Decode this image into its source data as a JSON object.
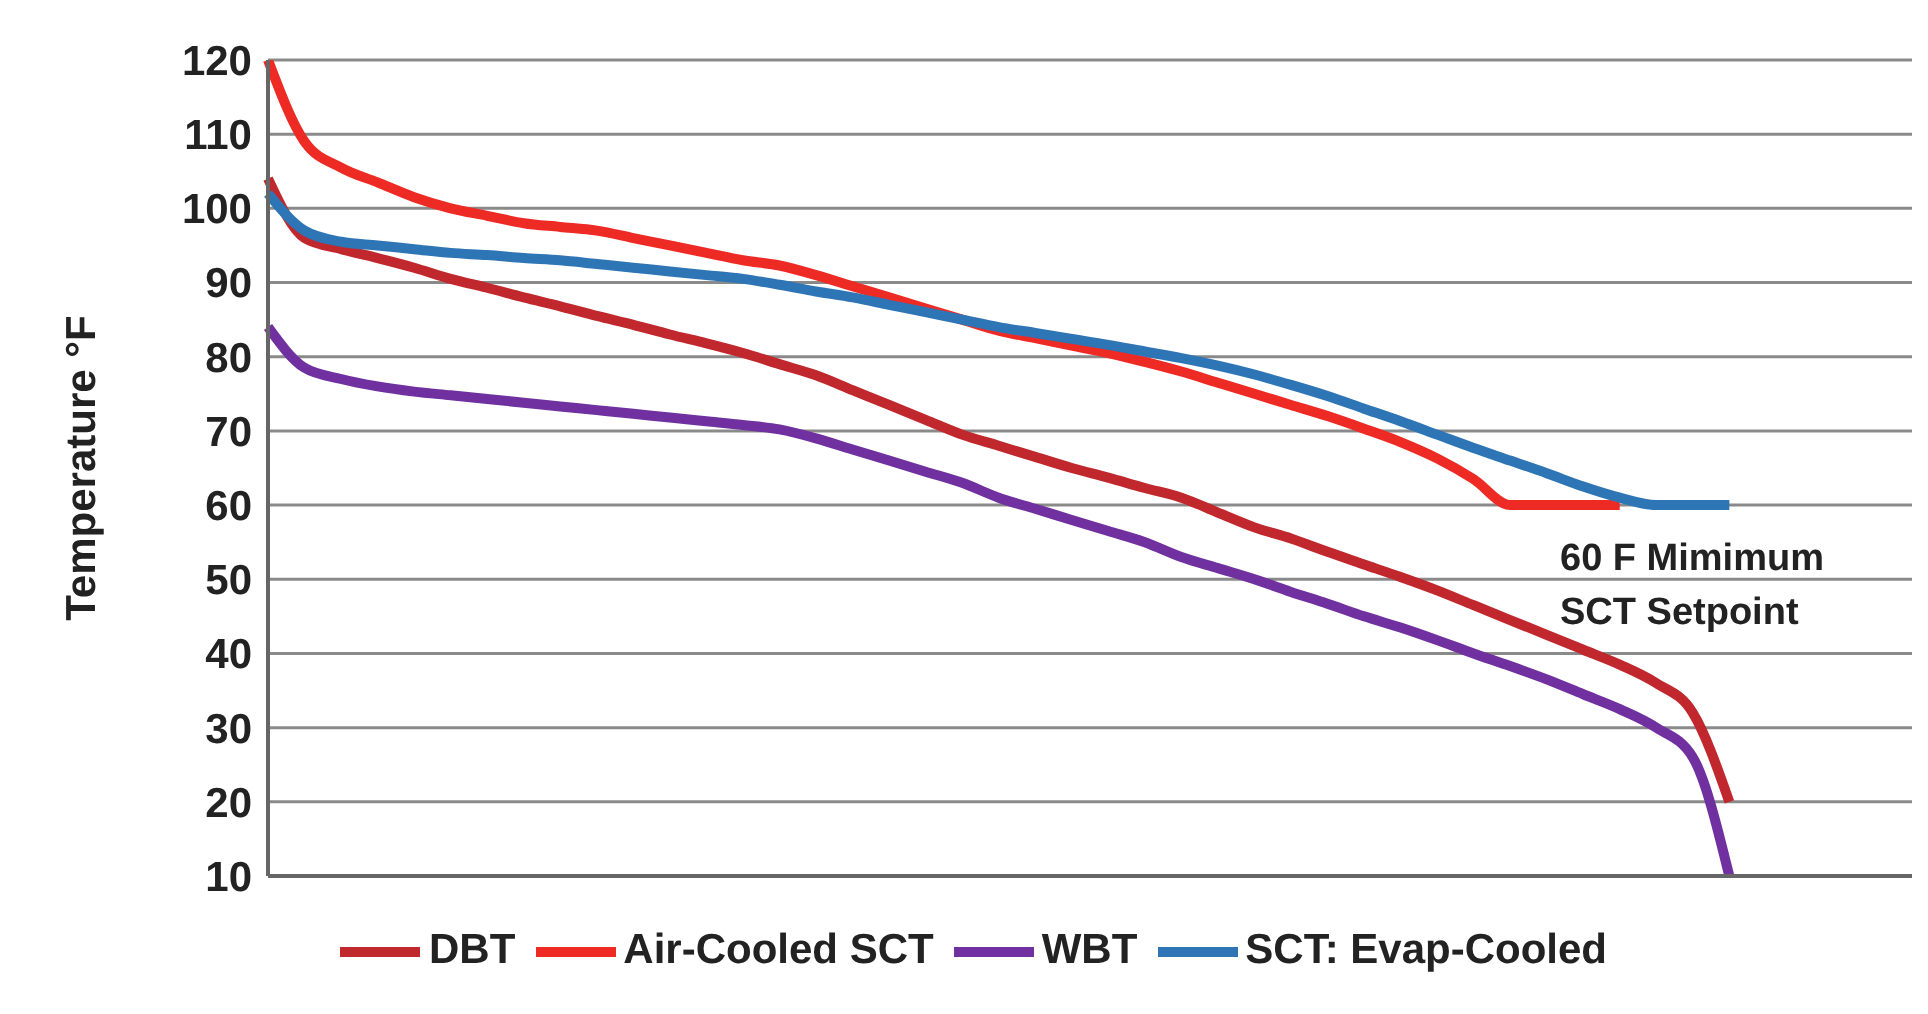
{
  "chart_data": {
    "type": "line",
    "ylabel": "Temperature °F",
    "categories": [
      null,
      null,
      null,
      null,
      null,
      null,
      null,
      null,
      null,
      null,
      null,
      null,
      null,
      null,
      null,
      null,
      null,
      null,
      null,
      null,
      null,
      null,
      null,
      null,
      null,
      null,
      null,
      null,
      null,
      null,
      null,
      null,
      null,
      null,
      null,
      null,
      null,
      null,
      null,
      null,
      null,
      null,
      null,
      null,
      null,
      null
    ],
    "series": [
      {
        "name": "DBT",
        "color": "#c0282d",
        "values": [
          104,
          96,
          94.5,
          93.3,
          92,
          90.5,
          89.3,
          88,
          86.8,
          85.5,
          84.3,
          83,
          81.8,
          80.5,
          79,
          77.5,
          75.5,
          73.5,
          71.5,
          69.5,
          68,
          66.5,
          65,
          63.7,
          62.3,
          61,
          59,
          57,
          55.5,
          53.7,
          52,
          50.3,
          48.5,
          46.5,
          44.5,
          42.5,
          40.5,
          38.5,
          36,
          32,
          20,
          null,
          null,
          null,
          null,
          null
        ]
      },
      {
        "name": "Air-Cooled SCT",
        "color": "#ee2a24",
        "values": [
          120,
          109,
          105.5,
          103.5,
          101.5,
          100,
          99,
          98,
          97.5,
          97,
          96,
          95,
          94,
          93,
          92.3,
          91,
          89.5,
          88,
          86.5,
          85,
          83.5,
          82.5,
          81.5,
          80.5,
          79.3,
          78,
          76.5,
          75,
          73.5,
          72,
          70.3,
          68.5,
          66.3,
          63.5,
          60,
          60,
          60,
          60,
          null,
          null,
          null,
          null,
          null,
          null,
          null,
          null
        ]
      },
      {
        "name": "WBT",
        "color": "#7030a0",
        "values": [
          84,
          78.5,
          77,
          76,
          75.3,
          74.8,
          74.3,
          73.8,
          73.3,
          72.8,
          72.3,
          71.8,
          71.3,
          70.8,
          70.2,
          69,
          67.5,
          66,
          64.5,
          63,
          61,
          59.5,
          58,
          56.5,
          55,
          53,
          51.5,
          50,
          48.3,
          46.7,
          45,
          43.5,
          41.8,
          40,
          38.3,
          36.5,
          34.5,
          32.5,
          30,
          26,
          10,
          null,
          null,
          null,
          null,
          null
        ]
      },
      {
        "name": "SCT: Evap-Cooled",
        "color": "#2e75b6",
        "values": [
          102,
          97,
          95.5,
          95,
          94.5,
          94,
          93.7,
          93.3,
          93,
          92.5,
          92,
          91.5,
          91,
          90.5,
          89.7,
          88.8,
          88,
          87,
          86,
          85,
          84,
          83.2,
          82.4,
          81.6,
          80.7,
          79.8,
          78.8,
          77.6,
          76.2,
          74.7,
          73,
          71.3,
          69.5,
          67.7,
          66,
          64.3,
          62.5,
          61,
          60,
          60,
          60,
          null,
          null,
          null,
          null,
          null
        ]
      }
    ],
    "ylim": [
      10,
      120
    ],
    "yticks": [
      10,
      20,
      30,
      40,
      50,
      60,
      70,
      80,
      90,
      100,
      110,
      120
    ],
    "annotations": [
      "60 F Mimimum\nSCT Setpoint"
    ],
    "grid": "y",
    "legend": "bottom",
    "tick_labels": "y",
    "marker": "none",
    "line_style": "solid"
  }
}
